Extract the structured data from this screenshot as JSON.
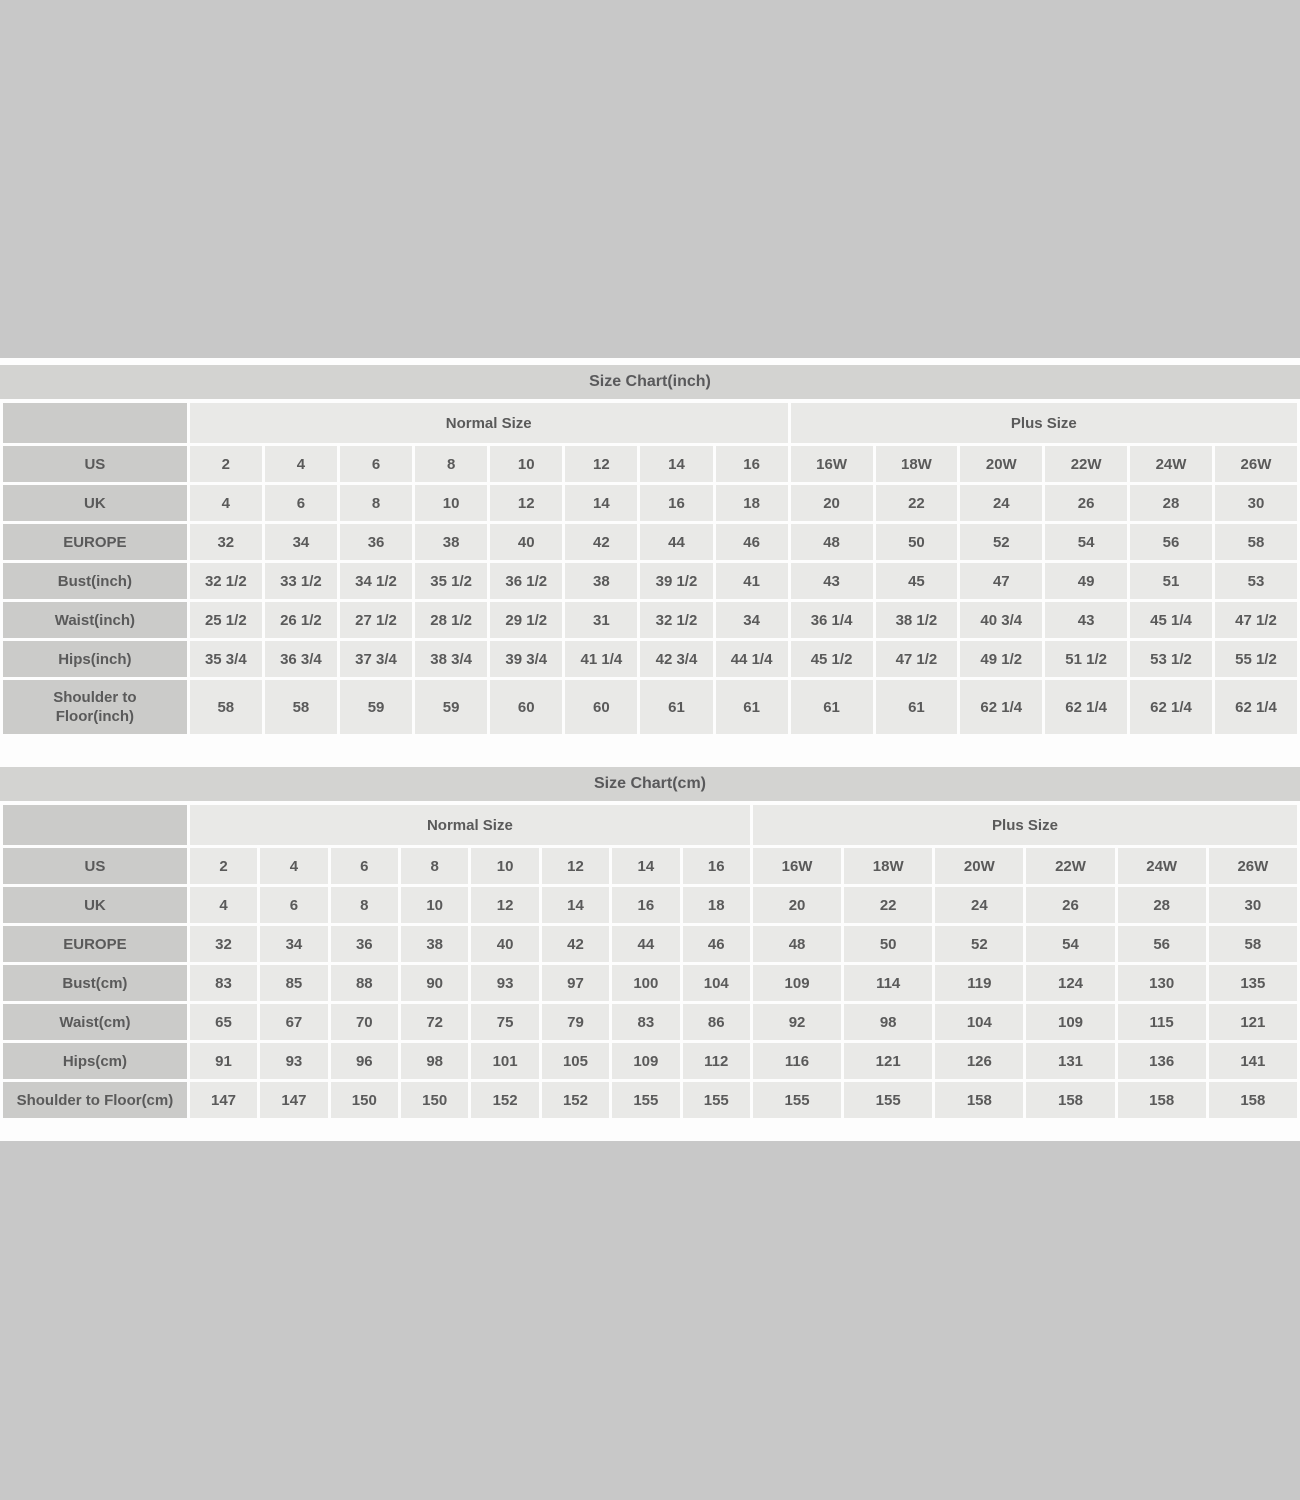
{
  "colors": {
    "page_background": "#c8c8c8",
    "content_background": "#fdfdfd",
    "title_bar": "#d3d3d1",
    "label_cell": "#cbcbc9",
    "data_cell": "#e9e9e7",
    "grid_gap": "#fdfdfd",
    "text": "#5a5a5a"
  },
  "chart_data": [
    {
      "type": "table",
      "name": "size-chart-inch-table",
      "title": "Size Chart(inch)",
      "column_groups": [
        {
          "label": "Normal Size",
          "span": 8
        },
        {
          "label": "Plus Size",
          "span": 6
        }
      ],
      "rows": [
        {
          "label": "US",
          "values": [
            "2",
            "4",
            "6",
            "8",
            "10",
            "12",
            "14",
            "16",
            "16W",
            "18W",
            "20W",
            "22W",
            "24W",
            "26W"
          ]
        },
        {
          "label": "UK",
          "values": [
            "4",
            "6",
            "8",
            "10",
            "12",
            "14",
            "16",
            "18",
            "20",
            "22",
            "24",
            "26",
            "28",
            "30"
          ]
        },
        {
          "label": "EUROPE",
          "values": [
            "32",
            "34",
            "36",
            "38",
            "40",
            "42",
            "44",
            "46",
            "48",
            "50",
            "52",
            "54",
            "56",
            "58"
          ]
        },
        {
          "label": "Bust(inch)",
          "values": [
            "32 1/2",
            "33 1/2",
            "34 1/2",
            "35 1/2",
            "36 1/2",
            "38",
            "39 1/2",
            "41",
            "43",
            "45",
            "47",
            "49",
            "51",
            "53"
          ]
        },
        {
          "label": "Waist(inch)",
          "values": [
            "25 1/2",
            "26 1/2",
            "27 1/2",
            "28 1/2",
            "29 1/2",
            "31",
            "32 1/2",
            "34",
            "36 1/4",
            "38 1/2",
            "40 3/4",
            "43",
            "45 1/4",
            "47 1/2"
          ]
        },
        {
          "label": "Hips(inch)",
          "values": [
            "35 3/4",
            "36 3/4",
            "37 3/4",
            "38 3/4",
            "39 3/4",
            "41 1/4",
            "42 3/4",
            "44 1/4",
            "45 1/2",
            "47 1/2",
            "49 1/2",
            "51 1/2",
            "53 1/2",
            "55 1/2"
          ]
        },
        {
          "label": "Shoulder to\nFloor(inch)",
          "values": [
            "58",
            "58",
            "59",
            "59",
            "60",
            "60",
            "61",
            "61",
            "61",
            "61",
            "62 1/4",
            "62 1/4",
            "62 1/4",
            "62 1/4"
          ]
        }
      ]
    },
    {
      "type": "table",
      "name": "size-chart-cm-table",
      "title": "Size Chart(cm)",
      "column_groups": [
        {
          "label": "Normal Size",
          "span": 8
        },
        {
          "label": "Plus Size",
          "span": 6
        }
      ],
      "rows": [
        {
          "label": "US",
          "values": [
            "2",
            "4",
            "6",
            "8",
            "10",
            "12",
            "14",
            "16",
            "16W",
            "18W",
            "20W",
            "22W",
            "24W",
            "26W"
          ]
        },
        {
          "label": "UK",
          "values": [
            "4",
            "6",
            "8",
            "10",
            "12",
            "14",
            "16",
            "18",
            "20",
            "22",
            "24",
            "26",
            "28",
            "30"
          ]
        },
        {
          "label": "EUROPE",
          "values": [
            "32",
            "34",
            "36",
            "38",
            "40",
            "42",
            "44",
            "46",
            "48",
            "50",
            "52",
            "54",
            "56",
            "58"
          ]
        },
        {
          "label": "Bust(cm)",
          "values": [
            "83",
            "85",
            "88",
            "90",
            "93",
            "97",
            "100",
            "104",
            "109",
            "114",
            "119",
            "124",
            "130",
            "135"
          ]
        },
        {
          "label": "Waist(cm)",
          "values": [
            "65",
            "67",
            "70",
            "72",
            "75",
            "79",
            "83",
            "86",
            "92",
            "98",
            "104",
            "109",
            "115",
            "121"
          ]
        },
        {
          "label": "Hips(cm)",
          "values": [
            "91",
            "93",
            "96",
            "98",
            "101",
            "105",
            "109",
            "112",
            "116",
            "121",
            "126",
            "131",
            "136",
            "141"
          ]
        },
        {
          "label": "Shoulder to Floor(cm)",
          "values": [
            "147",
            "147",
            "150",
            "150",
            "152",
            "152",
            "155",
            "155",
            "155",
            "155",
            "158",
            "158",
            "158",
            "158"
          ]
        }
      ]
    }
  ]
}
